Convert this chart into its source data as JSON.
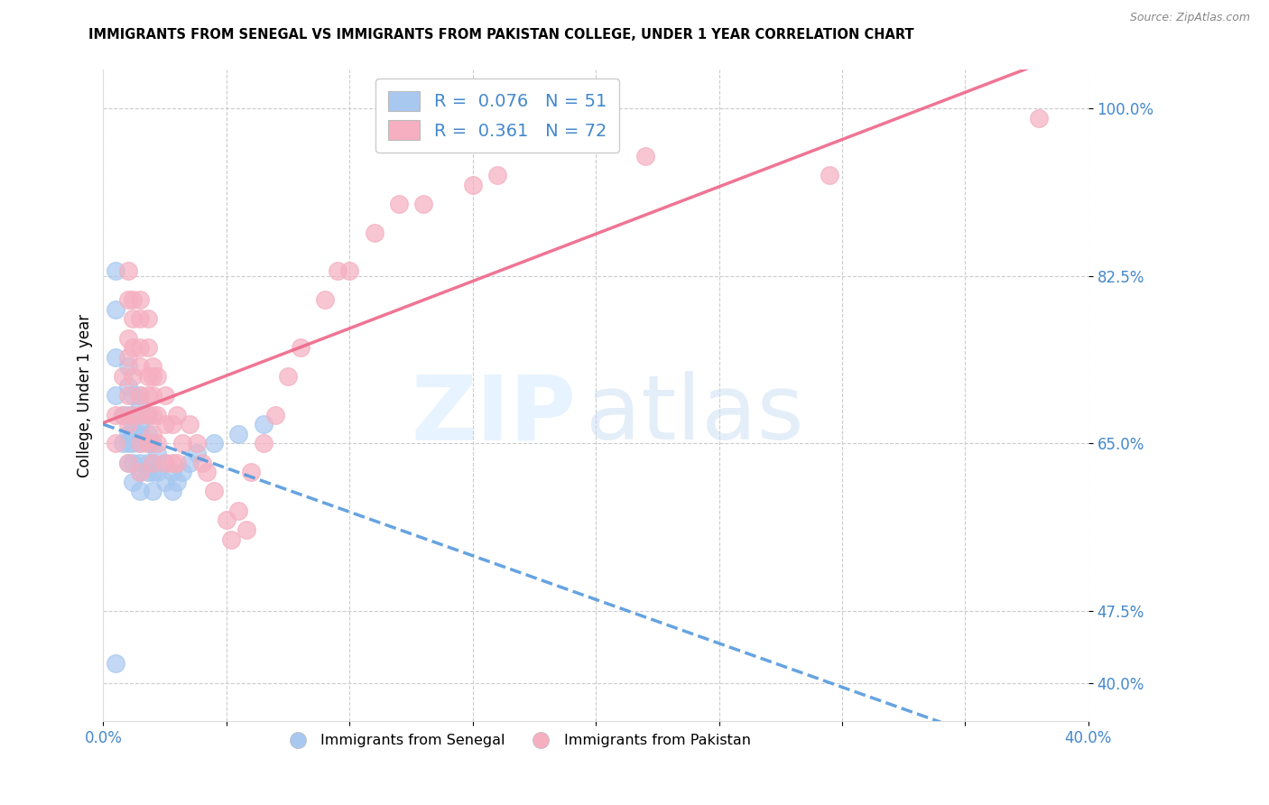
{
  "title": "IMMIGRANTS FROM SENEGAL VS IMMIGRANTS FROM PAKISTAN COLLEGE, UNDER 1 YEAR CORRELATION CHART",
  "source": "Source: ZipAtlas.com",
  "ylabel": "College, Under 1 year",
  "xlim": [
    0.0,
    0.4
  ],
  "ylim": [
    0.36,
    1.04
  ],
  "ytick_labels": [
    "40.0%",
    "47.5%",
    "65.0%",
    "82.5%",
    "100.0%"
  ],
  "ytick_values": [
    0.4,
    0.475,
    0.65,
    0.825,
    1.0
  ],
  "senegal_R": 0.076,
  "senegal_N": 51,
  "pakistan_R": 0.361,
  "pakistan_N": 72,
  "senegal_color": "#a8c8f0",
  "pakistan_color": "#f5afc0",
  "senegal_line_color": "#5599dd",
  "pakistan_line_color": "#ee6688",
  "senegal_x": [
    0.005,
    0.005,
    0.005,
    0.005,
    0.008,
    0.008,
    0.01,
    0.01,
    0.01,
    0.01,
    0.01,
    0.01,
    0.012,
    0.012,
    0.012,
    0.012,
    0.012,
    0.012,
    0.012,
    0.015,
    0.015,
    0.015,
    0.015,
    0.015,
    0.015,
    0.015,
    0.015,
    0.015,
    0.018,
    0.018,
    0.018,
    0.018,
    0.018,
    0.02,
    0.02,
    0.02,
    0.02,
    0.022,
    0.022,
    0.025,
    0.025,
    0.028,
    0.028,
    0.03,
    0.032,
    0.035,
    0.038,
    0.045,
    0.055,
    0.065,
    0.005
  ],
  "senegal_y": [
    0.83,
    0.79,
    0.74,
    0.7,
    0.68,
    0.65,
    0.73,
    0.71,
    0.68,
    0.66,
    0.65,
    0.63,
    0.7,
    0.68,
    0.67,
    0.66,
    0.65,
    0.63,
    0.61,
    0.7,
    0.69,
    0.68,
    0.67,
    0.66,
    0.65,
    0.63,
    0.62,
    0.6,
    0.68,
    0.66,
    0.65,
    0.63,
    0.62,
    0.65,
    0.63,
    0.62,
    0.6,
    0.64,
    0.62,
    0.63,
    0.61,
    0.62,
    0.6,
    0.61,
    0.62,
    0.63,
    0.64,
    0.65,
    0.66,
    0.67,
    0.42
  ],
  "pakistan_x": [
    0.005,
    0.005,
    0.008,
    0.008,
    0.01,
    0.01,
    0.01,
    0.01,
    0.01,
    0.01,
    0.01,
    0.012,
    0.012,
    0.012,
    0.012,
    0.012,
    0.015,
    0.015,
    0.015,
    0.015,
    0.015,
    0.015,
    0.015,
    0.015,
    0.018,
    0.018,
    0.018,
    0.018,
    0.018,
    0.018,
    0.02,
    0.02,
    0.02,
    0.02,
    0.02,
    0.02,
    0.022,
    0.022,
    0.022,
    0.025,
    0.025,
    0.025,
    0.028,
    0.028,
    0.03,
    0.03,
    0.032,
    0.035,
    0.038,
    0.04,
    0.042,
    0.045,
    0.05,
    0.052,
    0.055,
    0.058,
    0.06,
    0.065,
    0.07,
    0.075,
    0.08,
    0.09,
    0.095,
    0.1,
    0.11,
    0.12,
    0.13,
    0.15,
    0.16,
    0.22,
    0.295,
    0.38
  ],
  "pakistan_y": [
    0.65,
    0.68,
    0.72,
    0.68,
    0.83,
    0.8,
    0.76,
    0.74,
    0.7,
    0.67,
    0.63,
    0.8,
    0.78,
    0.75,
    0.72,
    0.68,
    0.8,
    0.78,
    0.75,
    0.73,
    0.7,
    0.68,
    0.65,
    0.62,
    0.78,
    0.75,
    0.72,
    0.7,
    0.68,
    0.65,
    0.73,
    0.72,
    0.7,
    0.68,
    0.66,
    0.63,
    0.72,
    0.68,
    0.65,
    0.7,
    0.67,
    0.63,
    0.67,
    0.63,
    0.68,
    0.63,
    0.65,
    0.67,
    0.65,
    0.63,
    0.62,
    0.6,
    0.57,
    0.55,
    0.58,
    0.56,
    0.62,
    0.65,
    0.68,
    0.72,
    0.75,
    0.8,
    0.83,
    0.83,
    0.87,
    0.9,
    0.9,
    0.92,
    0.93,
    0.95,
    0.93,
    0.99
  ]
}
